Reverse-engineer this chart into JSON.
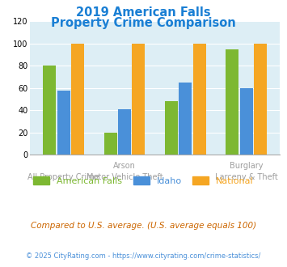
{
  "title_line1": "2019 American Falls",
  "title_line2": "Property Crime Comparison",
  "title_color": "#1a7fd4",
  "american_falls": [
    80,
    20,
    48,
    95
  ],
  "idaho": [
    58,
    41,
    65,
    60
  ],
  "national": [
    100,
    100,
    100,
    100
  ],
  "colors": {
    "american_falls": "#7db832",
    "idaho": "#4a90d9",
    "national": "#f5a623"
  },
  "ylim": [
    0,
    120
  ],
  "yticks": [
    0,
    20,
    40,
    60,
    80,
    100,
    120
  ],
  "plot_bg_color": "#ddeef5",
  "top_labels": [
    "",
    "Arson",
    "",
    "Burglary"
  ],
  "bottom_labels": [
    "All Property Crime",
    "Motor Vehicle Theft",
    "",
    "Larceny & Theft"
  ],
  "label_color": "#9e9e9e",
  "footer_text": "Compared to U.S. average. (U.S. average equals 100)",
  "footer_color": "#cc6600",
  "copyright_text": "© 2025 CityRating.com - https://www.cityrating.com/crime-statistics/",
  "copyright_color": "#4a90d9",
  "legend_labels": [
    "American Falls",
    "Idaho",
    "National"
  ],
  "bar_width": 0.23
}
